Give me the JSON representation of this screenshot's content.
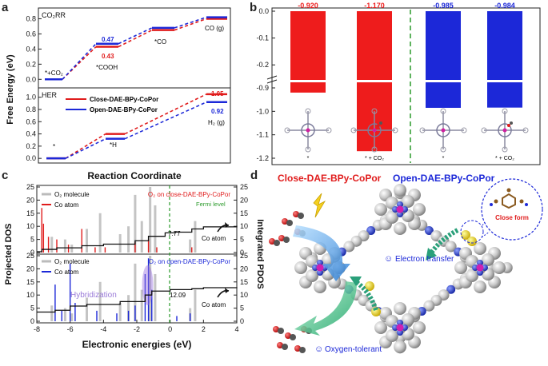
{
  "panel_labels": {
    "a": "a",
    "b": "b",
    "c": "c",
    "d": "d"
  },
  "panel_a": {
    "ylabel": "Free Energy (eV)",
    "xlabel": "Reaction Coordinate",
    "top_title": "CO₂RR",
    "bottom_title": "HER",
    "top_yticks": [
      "0.0",
      "0.2",
      "0.4",
      "0.6",
      "0.8"
    ],
    "bottom_yticks": [
      "0.0",
      "0.2",
      "0.4",
      "0.6",
      "0.8",
      "1.0"
    ],
    "top_labels": {
      "start": "*+CO₂",
      "cooh": "*COOH",
      "co": "*CO",
      "cog": "CO (g)",
      "v_blue": "0.47",
      "v_red": "0.43"
    },
    "bottom_labels": {
      "start": "*",
      "h": "*H",
      "h2": "H₂ (g)",
      "v_red": "1.05",
      "v_blue": "0.92"
    },
    "legend": [
      "Close-DAE-BPy-CoPor",
      "Open-DAE-BPy-CoPor"
    ]
  },
  "panel_b": {
    "values": [
      "-0.920",
      "-1.170",
      "-0.985",
      "-0.984"
    ],
    "yticks_top": [
      "0.0",
      "-0.1",
      "-0.2"
    ],
    "yticks_bottom": [
      "-0.9",
      "-1.0",
      "-1.1",
      "-1.2"
    ],
    "xlabels": [
      "*",
      "* + CO₂",
      "*",
      "* + CO₂"
    ],
    "colors": {
      "red": "#ee1c1c",
      "blue": "#1c28d8",
      "divider": "#2a9a2a"
    }
  },
  "panel_c": {
    "ylabel_left": "Projected DOS",
    "ylabel_right": "Integrated PDOS",
    "xlabel": "Electronic energies (eV)",
    "xticks": [
      "-8",
      "-6",
      "-4",
      "-2",
      "0",
      "2",
      "4"
    ],
    "yticks": [
      "0",
      "5",
      "10",
      "15",
      "20",
      "25"
    ],
    "top": {
      "legend1": "O₂ molecule",
      "legend2": "Co atom",
      "title": "O₂ on close-DAE-BPy-CoPor",
      "fermi": "Fermi level",
      "value": "7.77",
      "co_label": "Co atom"
    },
    "bottom": {
      "legend1": "O₂ molecule",
      "legend2": "Co atom",
      "title": "O₂ on open-DAE-BPy-CoPor",
      "hybrid": "Hybridization",
      "value": "12.09",
      "co_label": "Co atom"
    }
  },
  "panel_d": {
    "title_close": "Close-DAE-BPy-CoPor",
    "title_open": "Open-DAE-BPy-CoPor",
    "close_form": "Close form",
    "electron_transfer": "Electron transfer",
    "oxygen_tolerant": "Oxygen-tolerant"
  },
  "chart_data": [
    {
      "type": "line",
      "title": "CO₂RR",
      "ylabel": "Free Energy (eV)",
      "categories": [
        "*+CO₂",
        "*COOH",
        "*CO",
        "CO (g)"
      ],
      "series": [
        {
          "name": "Close-DAE-BPy-CoPor",
          "values": [
            0.0,
            0.43,
            0.65,
            0.8
          ]
        },
        {
          "name": "Open-DAE-BPy-CoPor",
          "values": [
            0.0,
            0.47,
            0.68,
            0.82
          ]
        }
      ],
      "ylim": [
        -0.05,
        0.9
      ]
    },
    {
      "type": "line",
      "title": "HER",
      "categories": [
        "*",
        "*H",
        "H₂ (g)"
      ],
      "series": [
        {
          "name": "Close-DAE-BPy-CoPor",
          "values": [
            0.0,
            0.4,
            1.05
          ]
        },
        {
          "name": "Open-DAE-BPy-CoPor",
          "values": [
            0.0,
            0.32,
            0.92
          ]
        }
      ],
      "ylim": [
        -0.05,
        1.1
      ]
    },
    {
      "type": "bar",
      "categories": [
        "*",
        "* + CO₂",
        "*",
        "* + CO₂"
      ],
      "values": [
        -0.92,
        -1.17,
        -0.985,
        -0.984
      ],
      "ylim": [
        -1.2,
        0.0
      ]
    }
  ]
}
